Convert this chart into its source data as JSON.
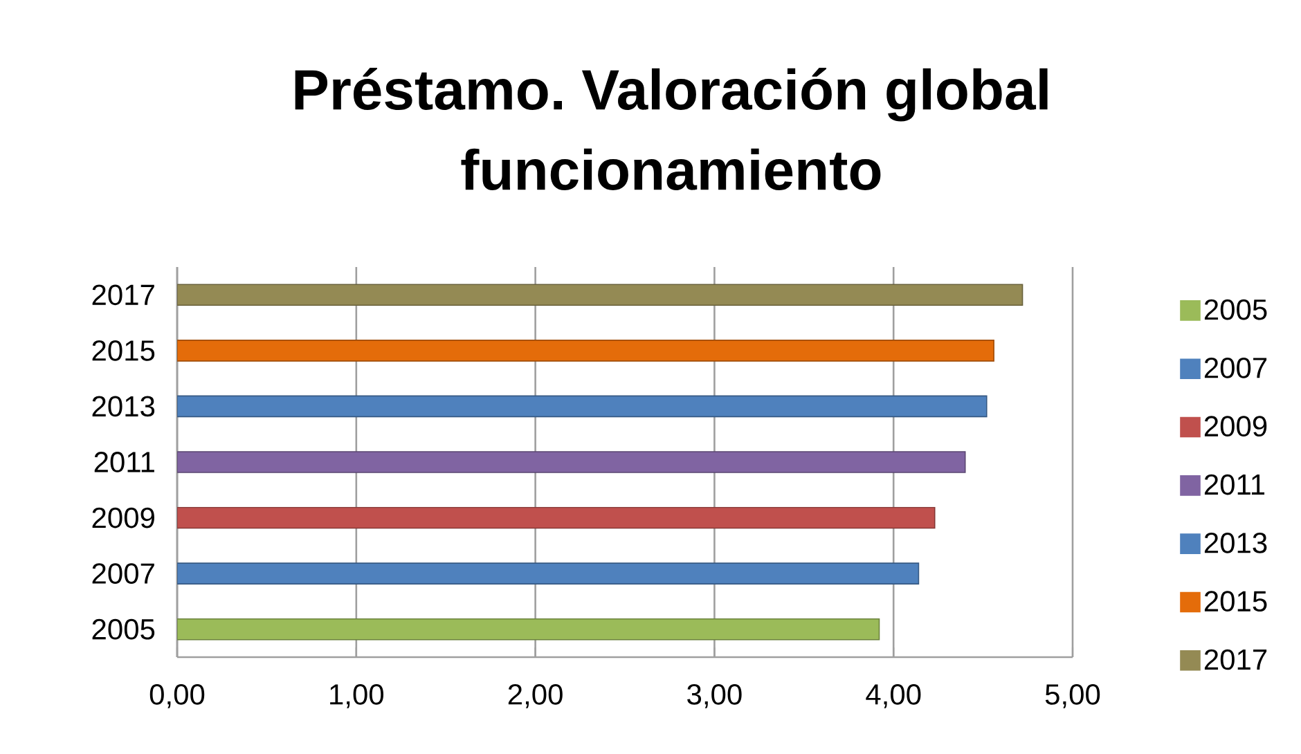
{
  "chart_data": {
    "type": "bar",
    "orientation": "horizontal",
    "title": "Préstamo. Valoración global funcionamiento",
    "categories": [
      "2017",
      "2015",
      "2013",
      "2011",
      "2009",
      "2007",
      "2005"
    ],
    "series": [
      {
        "name": "2005",
        "color": "#9bbb59",
        "values": [
          null,
          null,
          null,
          null,
          null,
          null,
          3.92
        ]
      },
      {
        "name": "2007",
        "color": "#4f81bd",
        "values": [
          null,
          null,
          null,
          null,
          null,
          4.14,
          null
        ]
      },
      {
        "name": "2009",
        "color": "#c0504d",
        "values": [
          null,
          null,
          null,
          null,
          4.23,
          null,
          null
        ]
      },
      {
        "name": "2011",
        "color": "#8064a2",
        "values": [
          null,
          null,
          null,
          4.4,
          null,
          null,
          null
        ]
      },
      {
        "name": "2013",
        "color": "#4f81bd",
        "values": [
          null,
          null,
          4.52,
          null,
          null,
          null,
          null
        ]
      },
      {
        "name": "2015",
        "color": "#e46c0a",
        "values": [
          null,
          4.56,
          null,
          null,
          null,
          null,
          null
        ]
      },
      {
        "name": "2017",
        "color": "#948a54",
        "values": [
          4.72,
          null,
          null,
          null,
          null,
          null,
          null
        ]
      }
    ],
    "xlim": [
      0,
      5
    ],
    "xticks": [
      {
        "value": 0,
        "label": "0,00"
      },
      {
        "value": 1,
        "label": "1,00"
      },
      {
        "value": 2,
        "label": "2,00"
      },
      {
        "value": 3,
        "label": "3,00"
      },
      {
        "value": 4,
        "label": "4,00"
      },
      {
        "value": 5,
        "label": "5,00"
      }
    ],
    "grid": "x",
    "legend": "right"
  }
}
